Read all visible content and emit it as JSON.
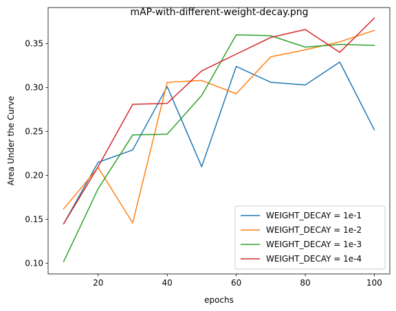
{
  "chart_data": {
    "type": "line",
    "title": "mAP-with-different-weight-decay.png",
    "xlabel": "epochs",
    "ylabel": "Area Under the Curve",
    "xlim": [
      5.5,
      104.5
    ],
    "ylim": [
      0.088,
      0.391
    ],
    "xticks": [
      20,
      40,
      60,
      80,
      100
    ],
    "yticks": [
      0.1,
      0.15,
      0.2,
      0.25,
      0.3,
      0.35
    ],
    "xtick_labels": [
      "20",
      "40",
      "60",
      "80",
      "100"
    ],
    "ytick_labels": [
      "0.10",
      "0.15",
      "0.20",
      "0.25",
      "0.30",
      "0.35"
    ],
    "grid": false,
    "legend_position": "lower right",
    "x": [
      10,
      20,
      30,
      40,
      50,
      60,
      70,
      80,
      90,
      100
    ],
    "series": [
      {
        "name": "WEIGHT_DECAY = 1e-1",
        "color": "#1f77b4",
        "values": [
          0.145,
          0.215,
          0.229,
          0.301,
          0.21,
          0.324,
          0.306,
          0.303,
          0.329,
          0.252
        ]
      },
      {
        "name": "WEIGHT_DECAY = 1e-2",
        "color": "#ff7f0e",
        "values": [
          0.162,
          0.209,
          0.146,
          0.306,
          0.308,
          0.293,
          0.335,
          0.343,
          0.352,
          0.365
        ]
      },
      {
        "name": "WEIGHT_DECAY = 1e-3",
        "color": "#2ca02c",
        "values": [
          0.102,
          0.185,
          0.246,
          0.247,
          0.291,
          0.36,
          0.359,
          0.346,
          0.349,
          0.348
        ]
      },
      {
        "name": "WEIGHT_DECAY = 1e-4",
        "color": "#d62728",
        "values": [
          0.145,
          0.21,
          0.281,
          0.282,
          0.319,
          0.338,
          0.357,
          0.366,
          0.34,
          0.379
        ]
      }
    ]
  }
}
